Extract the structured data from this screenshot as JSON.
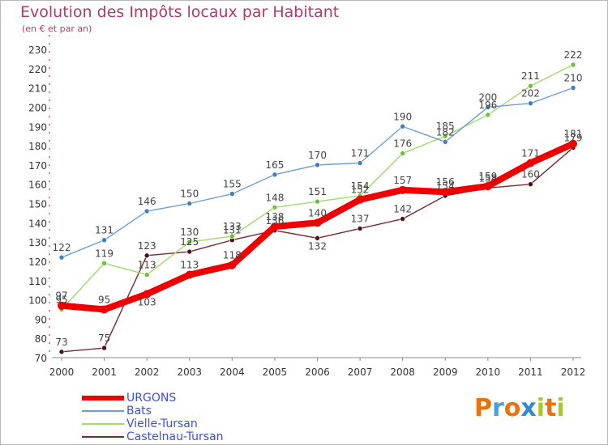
{
  "header": {
    "title": "Evolution des Impôts locaux par Habitant",
    "subtitle": "(en € et par an)"
  },
  "logo": {
    "letters": [
      "P",
      "r",
      "o",
      "x",
      "i",
      "t",
      "i"
    ],
    "colors": [
      "#e8730c",
      "#4a9fd8",
      "#e8730c",
      "#2e8bd3",
      "#a8c82b",
      "#e8730c",
      "#a8c82b"
    ]
  },
  "legend": {
    "items": [
      {
        "label": "URGONS",
        "color": "#ee0000",
        "width": 6
      },
      {
        "label": "Bats",
        "color": "#6f9fd0",
        "width": 1.5
      },
      {
        "label": "Vielle-Tursan",
        "color": "#9edc6c",
        "width": 1.5
      },
      {
        "label": "Castelnau-Tursan",
        "color": "#7a2a2a",
        "width": 1.5
      }
    ]
  },
  "chart_data": {
    "type": "line",
    "title": "Evolution des Impôts locaux par Habitant",
    "subtitle": "(en € et par an)",
    "x": [
      "2000",
      "2001",
      "2002",
      "2003",
      "2004",
      "2005",
      "2006",
      "2007",
      "2008",
      "2009",
      "2010",
      "2011",
      "2012"
    ],
    "ylim": [
      70,
      230
    ],
    "yticks": [
      70,
      80,
      90,
      100,
      110,
      120,
      130,
      140,
      150,
      160,
      170,
      180,
      190,
      200,
      210,
      220,
      230
    ],
    "grid": false,
    "legend_position": "bottom-left",
    "series": [
      {
        "name": "URGONS",
        "color": "#ee0000",
        "marker": "#ee0000",
        "values": [
          97,
          95,
          103,
          113,
          118,
          138,
          140,
          152,
          157,
          156,
          159,
          171,
          181
        ],
        "label_dy": [
          -14,
          -14,
          8,
          -14,
          -14,
          -14,
          -14,
          -14,
          -14,
          -14,
          -14,
          -14,
          -14
        ]
      },
      {
        "name": "Bats",
        "color": "#6f9fd0",
        "marker": "#3e7fc3",
        "values": [
          122,
          131,
          146,
          150,
          155,
          165,
          170,
          171,
          190,
          182,
          200,
          202,
          210
        ],
        "label_dy": [
          -14,
          -14,
          -14,
          -14,
          -14,
          -14,
          -14,
          -14,
          -14,
          -14,
          -14,
          -14,
          -14
        ]
      },
      {
        "name": "Vielle-Tursan",
        "color": "#9edc6c",
        "marker": "#6cc13a",
        "values": [
          95,
          119,
          113,
          130,
          133,
          148,
          151,
          154,
          176,
          185,
          196,
          211,
          222
        ],
        "label_dy": [
          -14,
          -14,
          -14,
          -14,
          -14,
          -14,
          -14,
          -14,
          -14,
          -14,
          -14,
          -14,
          -14
        ]
      },
      {
        "name": "Castelnau-Tursan",
        "color": "#7a2a2a",
        "marker": "#4a1414",
        "values": [
          73,
          75,
          123,
          125,
          131,
          136,
          132,
          137,
          142,
          154,
          158,
          160,
          179
        ],
        "label_dy": [
          -14,
          -14,
          -14,
          -14,
          -14,
          -14,
          8,
          -14,
          -14,
          -14,
          -14,
          -14,
          -14
        ]
      }
    ]
  }
}
